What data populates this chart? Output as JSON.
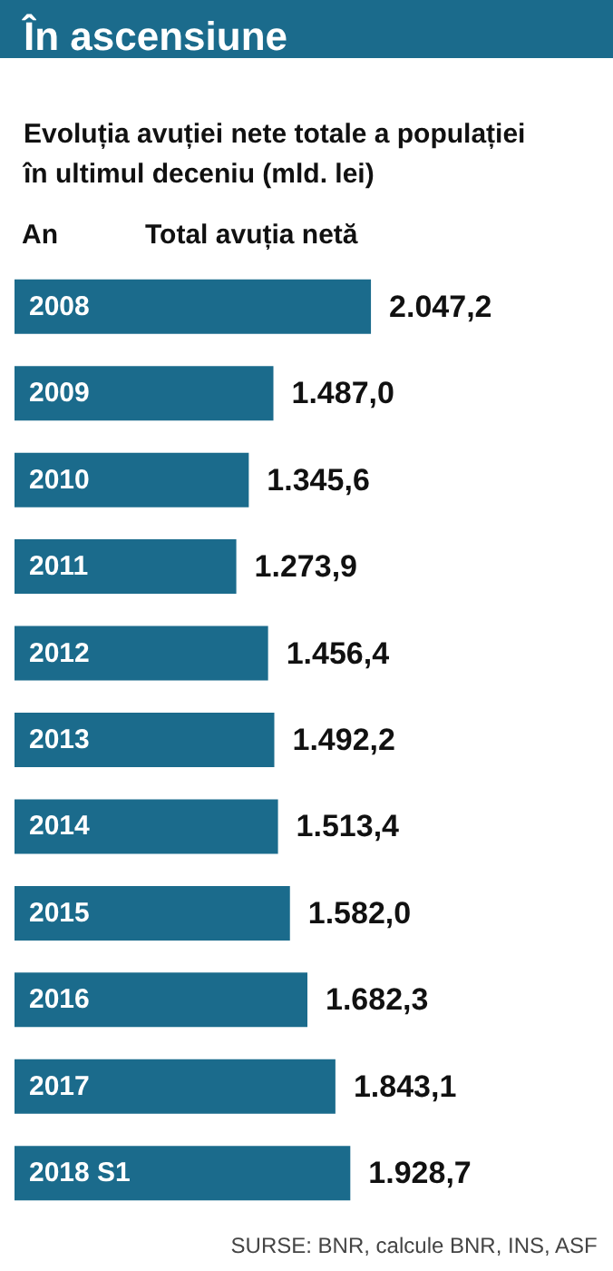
{
  "chart_data": {
    "type": "bar",
    "orientation": "horizontal",
    "title": "În ascensiune",
    "subtitle": "Evoluția avuției nete totale a populației în ultimul deceniu (mld. lei)",
    "categories": [
      "2008",
      "2009",
      "2010",
      "2011",
      "2012",
      "2013",
      "2014",
      "2015",
      "2016",
      "2017",
      "2018 S1"
    ],
    "values": [
      2047.2,
      1487.0,
      1345.6,
      1273.9,
      1456.4,
      1492.2,
      1513.4,
      1582.0,
      1682.3,
      1843.1,
      1928.7
    ],
    "value_labels": [
      "2.047,2",
      "1.487,0",
      "1.345,6",
      "1.273,9",
      "1.456,4",
      "1.492,2",
      "1.513,4",
      "1.582,0",
      "1.682,3",
      "1.843,1",
      "1.928,7"
    ],
    "color": "#1b6b8c",
    "annotations": [
      "An",
      "Total avuția netă",
      "SURSE: BNR, calcule BNR, INS, ASF"
    ]
  }
}
